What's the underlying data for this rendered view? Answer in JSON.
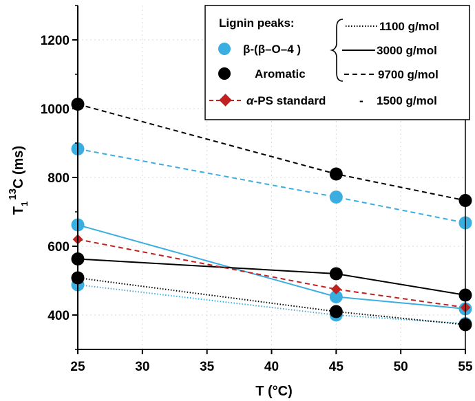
{
  "chart_data": {
    "type": "line",
    "xlabel": "T (°C)",
    "ylabel_main": "T",
    "ylabel_sub": "1",
    "ylabel_sup": "13",
    "ylabel_rest": "C (ms)",
    "xlim": [
      25,
      55
    ],
    "ylim": [
      300,
      1300
    ],
    "xticks": [
      25,
      30,
      35,
      40,
      45,
      50,
      55
    ],
    "yticks": [
      400,
      600,
      800,
      1000,
      1200
    ],
    "colors": {
      "beta": "#3AAEE0",
      "aromatic": "#000000",
      "ps": "#C0201F"
    },
    "series": [
      {
        "name": "β-(β–O–4 ) 1100 g/mol",
        "group": "beta",
        "mw": "1100 g/mol",
        "line": "dotted",
        "x": [
          25,
          45,
          55
        ],
        "y": [
          488,
          400,
          375
        ]
      },
      {
        "name": "β-(β–O–4 ) 3000 g/mol",
        "group": "beta",
        "mw": "3000 g/mol",
        "line": "solid",
        "x": [
          25,
          45,
          55
        ],
        "y": [
          662,
          453,
          418
        ]
      },
      {
        "name": "β-(β–O–4 ) 9700 g/mol",
        "group": "beta",
        "mw": "9700 g/mol",
        "line": "dashed",
        "x": [
          25,
          45,
          55
        ],
        "y": [
          883,
          743,
          668
        ]
      },
      {
        "name": "Aromatic 1100 g/mol",
        "group": "aromatic",
        "mw": "1100 g/mol",
        "line": "dotted",
        "x": [
          25,
          45,
          55
        ],
        "y": [
          508,
          410,
          372
        ]
      },
      {
        "name": "Aromatic 3000 g/mol",
        "group": "aromatic",
        "mw": "3000 g/mol",
        "line": "solid",
        "x": [
          25,
          45,
          55
        ],
        "y": [
          563,
          520,
          458
        ]
      },
      {
        "name": "Aromatic 9700 g/mol",
        "group": "aromatic",
        "mw": "9700 g/mol",
        "line": "dashed",
        "x": [
          25,
          45,
          55
        ],
        "y": [
          1013,
          810,
          733
        ]
      },
      {
        "name": "α-PS standard 1500 g/mol",
        "group": "ps",
        "mw": "1500 g/mol",
        "line": "dashed",
        "x": [
          25,
          45,
          55
        ],
        "y": [
          620,
          475,
          422
        ]
      }
    ],
    "legend": {
      "position": "top-right",
      "header": "Lignin peaks:",
      "beta_label": "β-(β–O–4 )",
      "aromatic_label": "Aromatic",
      "ps_label_alpha": "α",
      "ps_label_rest": "-PS standard",
      "ps_dash": "-",
      "ps_mw": "1500 g/mol",
      "mw_entries": [
        {
          "line": "dotted",
          "label": "1100 g/mol"
        },
        {
          "line": "solid",
          "label": "3000 g/mol"
        },
        {
          "line": "dashed",
          "label": "9700 g/mol"
        }
      ]
    }
  }
}
